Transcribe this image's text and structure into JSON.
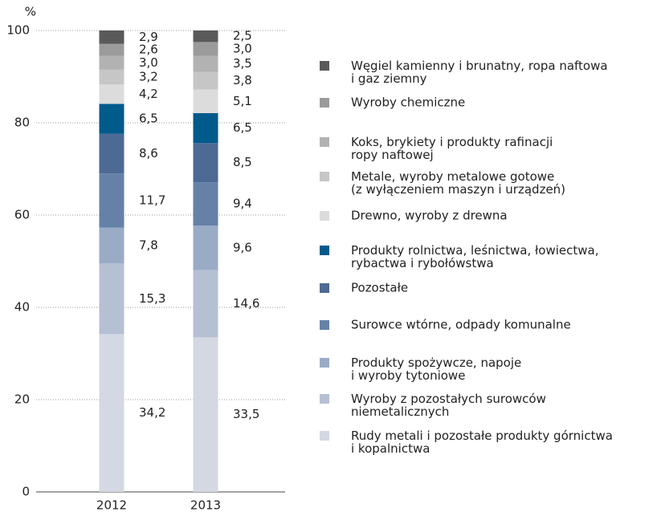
{
  "chart_data": {
    "type": "stacked_bar",
    "y_label": "%",
    "categories": [
      "2012",
      "2013"
    ],
    "ylim": [
      0,
      100
    ],
    "yticks": [
      0,
      20,
      40,
      60,
      80,
      100
    ],
    "grid": true,
    "series": [
      {
        "name": "Rudy metali i pozostałe produkty górnictwa\ni kopalnictwa",
        "color": "#d3d8e3",
        "values": [
          34.2,
          33.5
        ],
        "value_labels": [
          "34,2",
          "33,5"
        ]
      },
      {
        "name": "Wyroby z pozostałych surowców\nniemetalicznych",
        "color": "#b5c0d3",
        "values": [
          15.3,
          14.6
        ],
        "value_labels": [
          "15,3",
          "14,6"
        ]
      },
      {
        "name": "Produkty spożywcze, napoje\ni wyroby tytoniowe",
        "color": "#9aabc6",
        "values": [
          7.8,
          9.6
        ],
        "value_labels": [
          "7,8",
          "9,6"
        ]
      },
      {
        "name": "Surowce wtórne, odpady komunalne",
        "color": "#6581a8",
        "values": [
          11.7,
          9.4
        ],
        "value_labels": [
          "11,7",
          "9,4"
        ]
      },
      {
        "name": "Pozostałe",
        "color": "#4d6a95",
        "values": [
          8.6,
          8.5
        ],
        "value_labels": [
          "8,6",
          "8,5"
        ]
      },
      {
        "name": "Produkty rolnictwa, leśnictwa, łowiectwa,\nrybactwa i rybołówstwa",
        "color": "#005a8c",
        "values": [
          6.5,
          6.5
        ],
        "value_labels": [
          "6,5",
          "6,5"
        ]
      },
      {
        "name": "Drewno, wyroby z drewna",
        "color": "#dcdcdc",
        "values": [
          4.2,
          5.1
        ],
        "value_labels": [
          "4,2",
          "5,1"
        ]
      },
      {
        "name": "Metale, wyroby metalowe gotowe\n(z wyłączeniem maszyn i urządzeń)",
        "color": "#c6c6c6",
        "values": [
          3.2,
          3.8
        ],
        "value_labels": [
          "3,2",
          "3,8"
        ]
      },
      {
        "name": "Koks, brykiety i produkty rafinacji\nropy naftowej",
        "color": "#b2b2b2",
        "values": [
          3.0,
          3.5
        ],
        "value_labels": [
          "3,0",
          "3,5"
        ]
      },
      {
        "name": "Wyroby chemiczne",
        "color": "#9b9b9b",
        "values": [
          2.6,
          3.0
        ],
        "value_labels": [
          "2,6",
          "3,0"
        ]
      },
      {
        "name": "Węgiel kamienny i brunatny, ropa naftowa\ni gaz ziemny",
        "color": "#5a5a5a",
        "values": [
          2.9,
          2.5
        ],
        "value_labels": [
          "2,9",
          "2,5"
        ]
      }
    ]
  }
}
